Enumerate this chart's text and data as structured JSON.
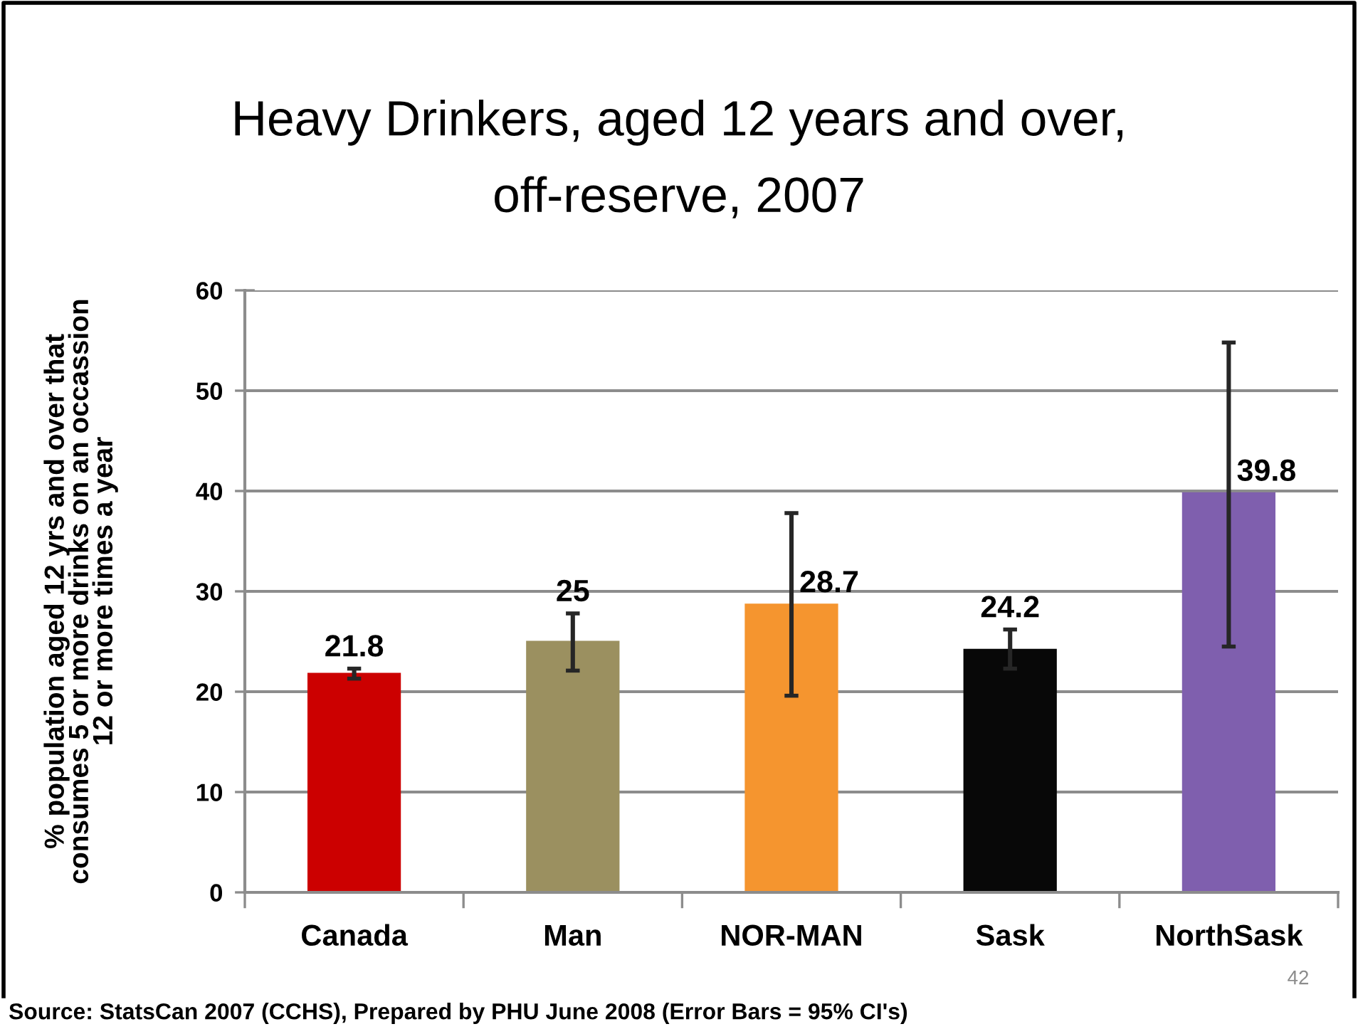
{
  "chart_data": {
    "type": "bar",
    "title": "Heavy Drinkers, aged 12 years and over,\noff-reserve, 2007",
    "ylabel": "% population aged 12 yrs and over that\nconsumes 5 or more drinks on an occassion\n12 or more times a year",
    "categories": [
      "Canada",
      "Man",
      "NOR-MAN",
      "Sask",
      "NorthSask"
    ],
    "values": [
      21.8,
      25,
      28.7,
      24.2,
      39.8
    ],
    "colors": [
      "#cc0000",
      "#9b9060",
      "#f5952f",
      "#080808",
      "#7f5fae"
    ],
    "errors": [
      [
        21.3,
        22.3
      ],
      [
        22.1,
        27.8
      ],
      [
        19.6,
        37.8
      ],
      [
        22.3,
        26.2
      ],
      [
        24.5,
        54.8
      ]
    ],
    "data_labels": true,
    "ylim": [
      0,
      60
    ],
    "yticks": [
      0,
      10,
      20,
      30,
      40,
      50,
      60
    ],
    "grid": "y",
    "annotations": [
      "Source: StatsCan 2007 (CCHS), Prepared by PHU June 2008 (Error Bars = 95% CI's)",
      "42"
    ]
  }
}
